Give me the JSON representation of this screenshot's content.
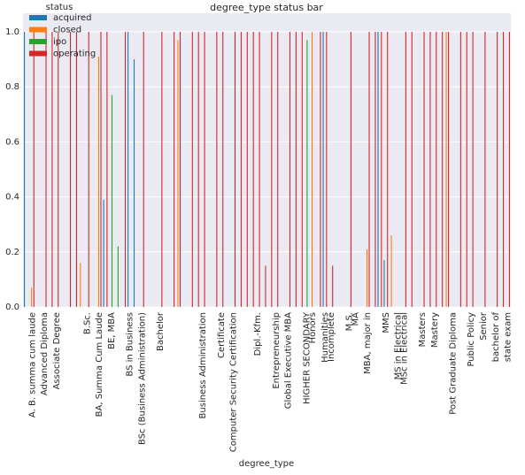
{
  "chart_data": {
    "type": "bar",
    "title": "degree_type status bar",
    "xlabel": "degree_type",
    "legend_title": "status",
    "legend": "upper left",
    "grid": true,
    "categories": [
      null,
      "A. B. summa cum laude",
      null,
      "Advanced Diploma",
      null,
      "Associate Degree",
      null,
      null,
      null,
      null,
      "B.Sc.",
      null,
      "BA, Summa Cum Laude",
      null,
      "BE, MBA",
      null,
      null,
      "BS in Business",
      null,
      "BSc (Business Administration)",
      null,
      null,
      "Bachelor",
      null,
      null,
      null,
      null,
      null,
      null,
      "Business Administration",
      null,
      null,
      "Certificate",
      null,
      "Computer Security Certification",
      null,
      null,
      null,
      "Dipl.-Kfm.",
      null,
      null,
      "Entrepreneurship",
      null,
      "Global Executive MBA",
      null,
      null,
      "HIGHER SECONDARY",
      "Honors",
      null,
      "Humanities",
      "Incomplete",
      null,
      null,
      "M.S.",
      "MA",
      null,
      "MBA, major in",
      null,
      null,
      "MMS",
      null,
      "MS in Electrical",
      "MSc in Electrical",
      null,
      null,
      "Masters",
      null,
      "Mastery",
      null,
      null,
      "Post Graduate Diploma",
      null,
      null,
      "Public Policy",
      null,
      "Senior",
      null,
      "bachelor of",
      null,
      "state exam"
    ],
    "series": [
      {
        "name": "acquired",
        "color": "#1f77b4",
        "values": [
          1,
          0,
          0,
          0,
          0,
          0,
          0,
          0,
          0,
          0,
          0,
          0,
          0,
          0.39,
          0,
          0,
          0,
          1,
          0.9,
          0,
          0,
          0,
          0,
          0,
          0,
          0,
          0,
          0,
          0,
          0,
          0,
          0,
          0,
          0,
          0,
          0,
          0,
          0,
          0,
          0,
          0,
          0,
          0,
          0,
          0,
          0,
          0,
          0,
          0,
          1,
          0,
          0,
          0,
          0,
          0,
          0,
          0,
          0,
          1,
          0.17,
          0,
          0,
          0,
          0,
          0,
          0,
          0,
          0,
          0,
          0,
          0,
          0,
          0,
          0,
          0,
          0,
          0,
          0,
          0,
          0
        ]
      },
      {
        "name": "closed",
        "color": "#ff7f0e",
        "values": [
          0,
          0.07,
          0,
          0,
          0,
          0,
          0,
          0,
          0,
          0.16,
          0,
          0,
          0.91,
          0,
          0,
          0,
          0,
          0,
          0,
          0,
          0,
          0,
          0,
          0,
          0,
          0.97,
          0,
          0,
          0,
          0,
          0,
          0,
          0,
          0,
          0,
          0,
          0,
          0,
          0,
          0,
          0,
          0,
          0,
          0,
          0,
          0,
          0,
          1,
          0,
          0,
          0,
          0,
          0,
          0,
          0,
          0,
          0.21,
          0,
          0,
          0,
          0.26,
          0,
          0,
          0,
          0,
          0,
          0,
          0,
          0,
          1,
          0,
          0,
          0,
          0,
          0,
          0,
          0,
          0,
          0,
          0
        ]
      },
      {
        "name": "ipo",
        "color": "#2ca02c",
        "values": [
          0,
          0,
          0,
          0,
          0,
          0,
          0,
          0,
          0,
          0,
          0,
          0,
          0,
          0,
          0.77,
          0.22,
          0,
          0,
          0,
          0,
          0,
          0,
          0,
          0,
          0,
          0,
          0,
          0,
          0,
          0,
          0,
          0,
          0,
          0,
          0,
          0,
          0,
          0,
          0,
          0,
          0,
          0,
          0,
          0,
          0,
          0,
          0.97,
          0,
          0,
          0,
          0,
          0,
          0,
          0,
          0,
          0,
          0,
          0,
          0,
          0,
          0,
          0,
          0,
          0,
          0,
          0,
          0,
          0,
          0,
          0,
          0,
          0,
          0,
          0,
          0,
          0,
          0,
          0,
          0,
          0
        ]
      },
      {
        "name": "operating",
        "color": "#d62728",
        "values": [
          0,
          1,
          0,
          1,
          1,
          1,
          0,
          1,
          1,
          0,
          1,
          0,
          1,
          1,
          0,
          0,
          1,
          0,
          0,
          1,
          0,
          0,
          1,
          0,
          1,
          1,
          0,
          1,
          1,
          1,
          0,
          1,
          1,
          0,
          1,
          1,
          1,
          1,
          1,
          0.15,
          1,
          1,
          0,
          1,
          1,
          1,
          0,
          0,
          1,
          1,
          0.15,
          0,
          0,
          1,
          0,
          0,
          1,
          1,
          1,
          1,
          0,
          0,
          1,
          1,
          0,
          1,
          1,
          1,
          1,
          1,
          0,
          1,
          1,
          1,
          0,
          1,
          0,
          1,
          1,
          1
        ]
      }
    ],
    "ylim": [
      0,
      1.0675
    ],
    "yticks": [
      {
        "value": 0,
        "label": "0.0"
      },
      0.2,
      0.4,
      0.6,
      0.8,
      {
        "value": 1,
        "label": "1.0"
      }
    ]
  }
}
